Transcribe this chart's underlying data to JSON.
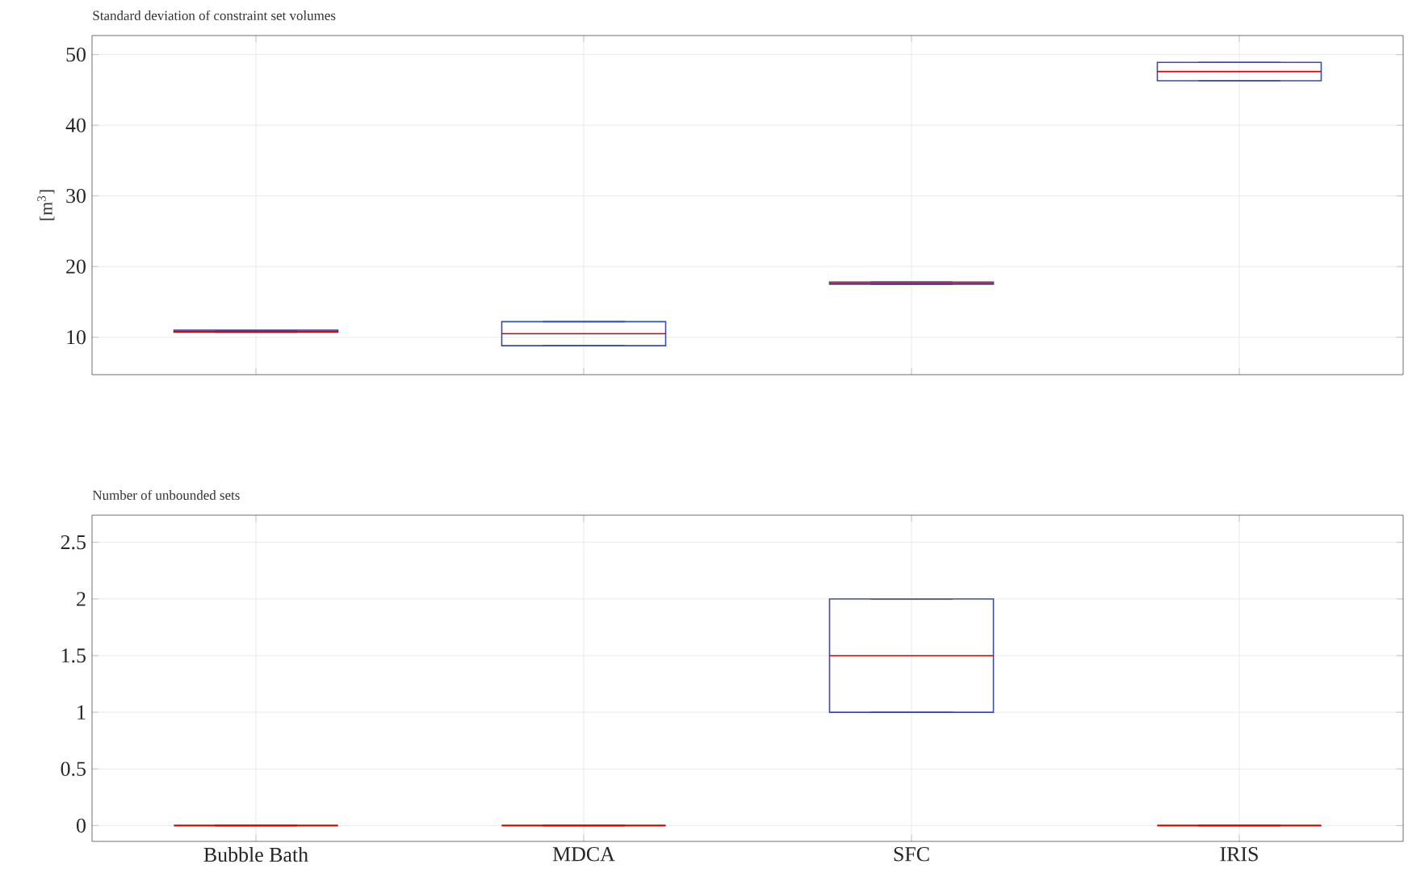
{
  "chart_data": [
    {
      "type": "box",
      "title": "Standard deviation of constraint set volumes",
      "ylabel": "[m$^{3}$]",
      "categories": [
        null,
        null,
        null,
        null
      ],
      "color": "#3a4fa0",
      "ylim": [
        4.7,
        52.7
      ],
      "yticks": [
        10,
        20,
        30,
        40,
        50
      ],
      "grid": true,
      "tick_labels": "y",
      "boxes": [
        {
          "low": 10.7,
          "q1": 10.7,
          "median": 10.8,
          "q3": 11.0,
          "high": 11.0
        },
        {
          "low": 8.8,
          "q1": 8.8,
          "median": 10.5,
          "q3": 12.2,
          "high": 12.2
        },
        {
          "low": 17.5,
          "q1": 17.5,
          "median": 17.6,
          "q3": 17.8,
          "high": 17.8
        },
        {
          "low": 46.3,
          "q1": 46.3,
          "median": 47.6,
          "q3": 48.9,
          "high": 48.9
        }
      ]
    },
    {
      "type": "box",
      "title": "Number of unbounded sets",
      "categories": [
        "Bubble Bath",
        "MDCA",
        "SFC",
        "IRIS"
      ],
      "color": "#3a4fa0",
      "ylim": [
        -0.14,
        2.74
      ],
      "yticks": [
        0,
        0.5,
        1,
        1.5,
        2,
        2.5
      ],
      "grid": true,
      "boxes": [
        {
          "low": 0,
          "q1": 0,
          "median": 0,
          "q3": 0,
          "high": 0
        },
        {
          "low": 0,
          "q1": 0,
          "median": 0,
          "q3": 0,
          "high": 0
        },
        {
          "low": 1,
          "q1": 1,
          "median": 1.5,
          "q3": 2,
          "high": 2
        },
        {
          "low": 0,
          "q1": 0,
          "median": 0,
          "q3": 0,
          "high": 0
        }
      ]
    }
  ]
}
